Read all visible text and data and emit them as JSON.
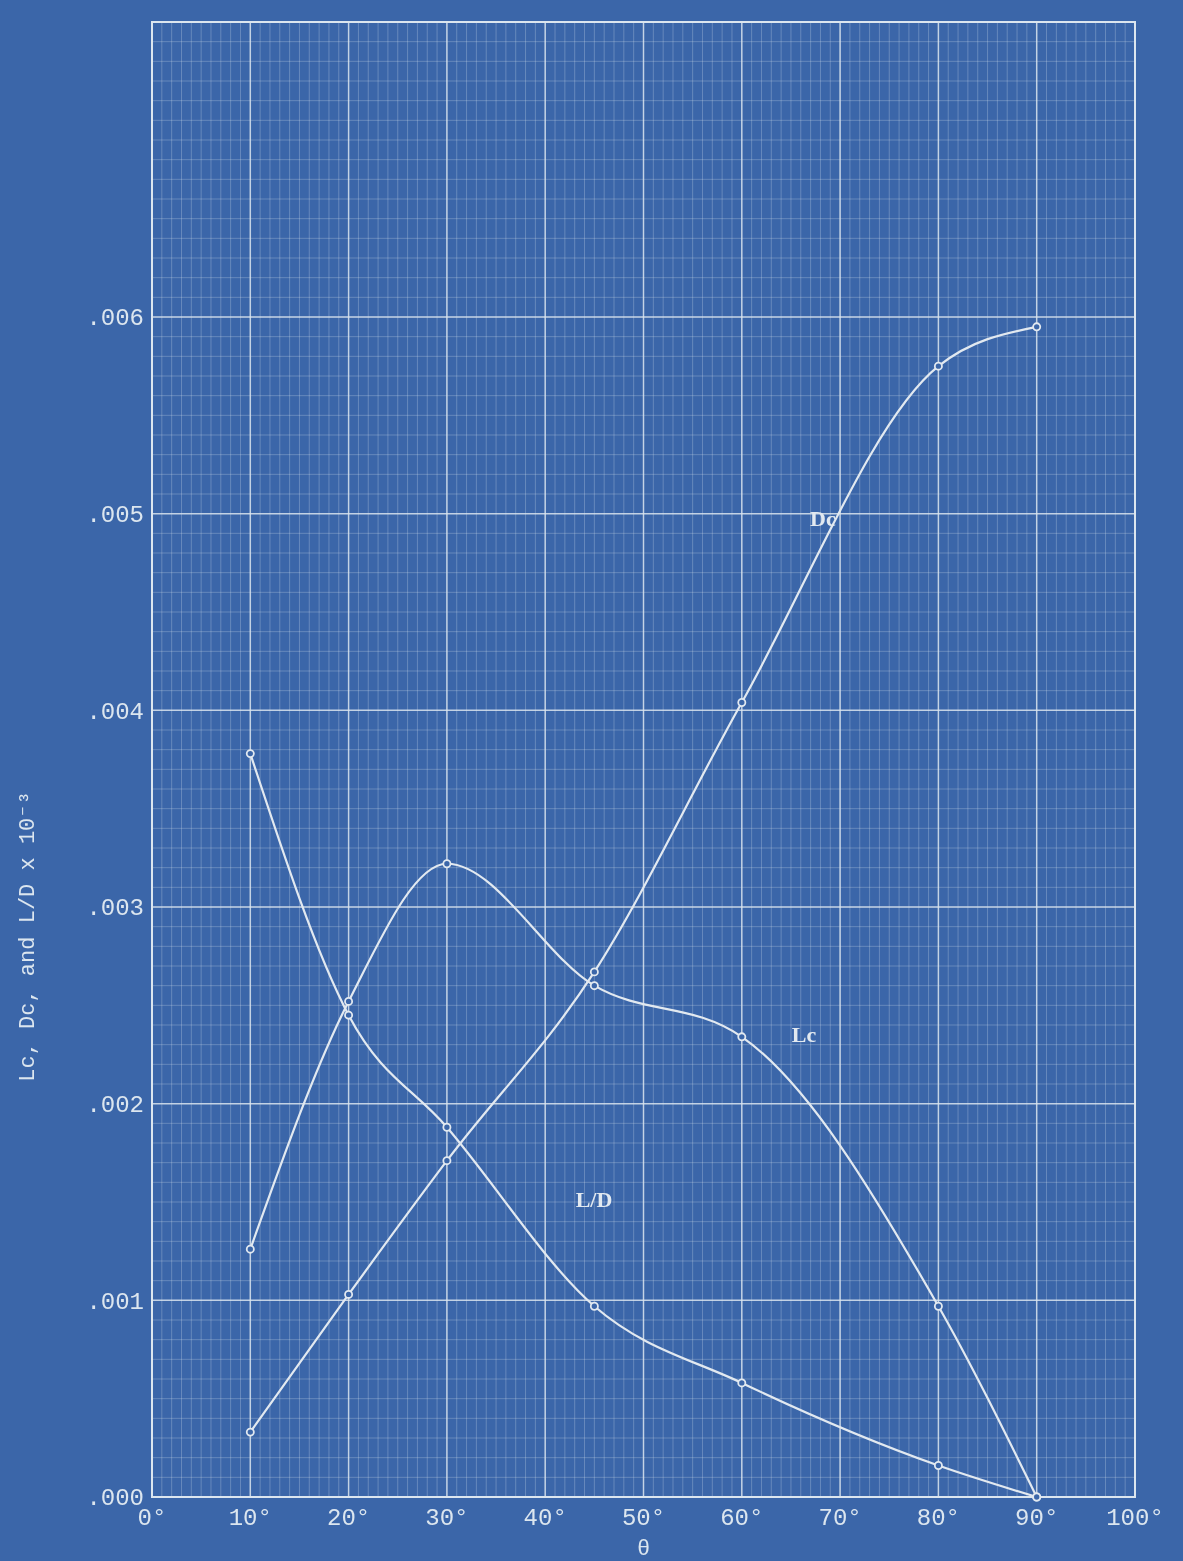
{
  "chart_data": {
    "type": "line",
    "xlabel": "θ",
    "ylabel": "Lc, Dc, and L/D x 10⁻³",
    "xlim": [
      0,
      100
    ],
    "ylim": [
      0,
      0.0075
    ],
    "xticks": [
      {
        "value": 0,
        "label": "0°"
      },
      {
        "value": 10,
        "label": "10°"
      },
      {
        "value": 20,
        "label": "20°"
      },
      {
        "value": 30,
        "label": "30°"
      },
      {
        "value": 40,
        "label": "40°"
      },
      {
        "value": 50,
        "label": "50°"
      },
      {
        "value": 60,
        "label": "60°"
      },
      {
        "value": 70,
        "label": "70°"
      },
      {
        "value": 80,
        "label": "80°"
      },
      {
        "value": 90,
        "label": "90°"
      },
      {
        "value": 100,
        "label": "100°"
      }
    ],
    "yticks": [
      {
        "value": 0,
        "label": ".000"
      },
      {
        "value": 0.001,
        "label": ".001"
      },
      {
        "value": 0.002,
        "label": ".002"
      },
      {
        "value": 0.003,
        "label": ".003"
      },
      {
        "value": 0.004,
        "label": ".004"
      },
      {
        "value": 0.005,
        "label": ".005"
      },
      {
        "value": 0.006,
        "label": ".006"
      }
    ],
    "grid": true,
    "marker": "circle",
    "line_style": "solid",
    "x": [
      10,
      20,
      30,
      45,
      60,
      80,
      90
    ],
    "series": [
      {
        "name": "Dc",
        "color": "#e2e9f0",
        "values": [
          0.00033,
          0.00103,
          0.00171,
          0.00267,
          0.00404,
          0.00575,
          0.00595
        ]
      },
      {
        "name": "Lc",
        "color": "#e2e9f0",
        "values": [
          0.00126,
          0.00252,
          0.00322,
          0.0026,
          0.00234,
          0.00097,
          0
        ]
      },
      {
        "name": "L/D",
        "color": "#e2e9f0",
        "values": [
          0.00378,
          0.00245,
          0.00188,
          0.00097,
          0.00058,
          0.00016,
          0
        ]
      }
    ]
  }
}
